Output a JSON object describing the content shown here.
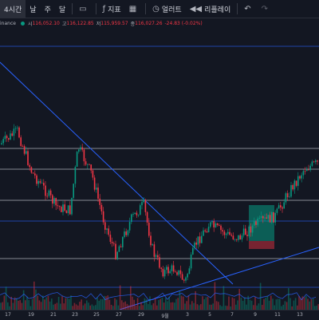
{
  "toolbar": {
    "interval": "4시간",
    "tf_day": "날",
    "tf_week": "주",
    "tf_month": "달",
    "indicators": "지표",
    "alert": "얼러트",
    "replay": "리플레이"
  },
  "legend": {
    "exchange": "inance",
    "open_label": "시",
    "open": "116,052.10",
    "high_label": "고",
    "high": "116,122.85",
    "low_label": "저",
    "low": "115,959.57",
    "close_label": "종",
    "close": "116,027.26",
    "change": "-24.83 (-0.02%)"
  },
  "x_axis": {
    "ticks": [
      "17",
      "19",
      "21",
      "23",
      "25",
      "27",
      "29",
      "9월",
      "3",
      "5",
      "7",
      "9",
      "11",
      "13"
    ]
  },
  "colors": {
    "background": "#131722",
    "up": "#089981",
    "down": "#f23645",
    "line": "#2962ff",
    "hline": "#d1d4dc"
  },
  "icons": {
    "candle_type": "candle-icon",
    "indicators": "fx-icon",
    "layout": "grid-icon",
    "alert": "clock-icon",
    "replay": "rewind-icon",
    "undo": "undo-icon",
    "redo": "redo-icon"
  }
}
